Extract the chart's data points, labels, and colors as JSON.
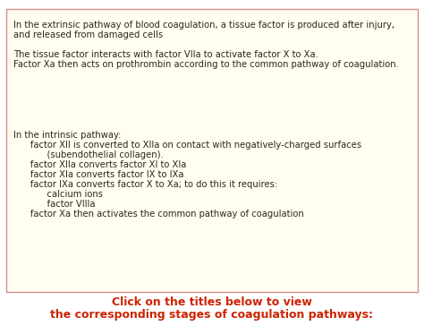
{
  "bg_color": "#fffef0",
  "border_color": "#d49090",
  "outer_bg": "#ffffff",
  "text_color": "#2a2a1a",
  "footer_color": "#cc2200",
  "main_font_size": 7.2,
  "footer_font_size": 9.0,
  "extrinsic_lines": [
    "In the extrinsic pathway of blood coagulation, a tissue factor is produced after injury,",
    "and released from damaged cells",
    "",
    "The tissue factor interacts with factor VIIa to activate factor X to Xa.",
    "Factor Xa then acts on prothrombin according to the common pathway of coagulation."
  ],
  "intrinsic_lines": [
    "In the intrinsic pathway:",
    "      factor XII is converted to XIIa on contact with negatively-charged surfaces",
    "            (subendothelial collagen).",
    "      factor XIIa converts factor XI to XIa",
    "      factor XIa converts factor IX to IXa",
    "      factor IXa converts factor X to Xa; to do this it requires:",
    "            calcium ions",
    "            factor VIIIa",
    "      factor Xa then activates the common pathway of coagulation"
  ],
  "footer_line1": "Click on the titles below to view",
  "footer_line2": "the corresponding stages of coagulation pathways:"
}
